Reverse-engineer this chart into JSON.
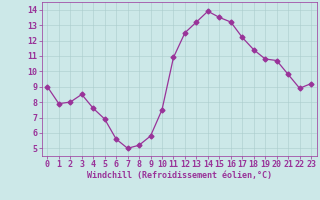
{
  "x": [
    0,
    1,
    2,
    3,
    4,
    5,
    6,
    7,
    8,
    9,
    10,
    11,
    12,
    13,
    14,
    15,
    16,
    17,
    18,
    19,
    20,
    21,
    22,
    23
  ],
  "y": [
    9.0,
    7.9,
    8.0,
    8.5,
    7.6,
    6.9,
    5.6,
    5.0,
    5.2,
    5.8,
    7.5,
    10.9,
    12.5,
    13.2,
    13.9,
    13.5,
    13.2,
    12.2,
    11.4,
    10.8,
    10.7,
    9.8,
    8.9,
    9.2
  ],
  "line_color": "#993399",
  "marker": "D",
  "markersize": 2.5,
  "linewidth": 0.9,
  "background_color": "#cce8e8",
  "grid_color": "#aacccc",
  "xlabel": "Windchill (Refroidissement éolien,°C)",
  "xlabel_fontsize": 6.0,
  "xlabel_color": "#993399",
  "tick_color": "#993399",
  "tick_fontsize": 6.0,
  "ylim": [
    4.5,
    14.5
  ],
  "xlim": [
    -0.5,
    23.5
  ],
  "yticks": [
    5,
    6,
    7,
    8,
    9,
    10,
    11,
    12,
    13,
    14
  ],
  "xticks": [
    0,
    1,
    2,
    3,
    4,
    5,
    6,
    7,
    8,
    9,
    10,
    11,
    12,
    13,
    14,
    15,
    16,
    17,
    18,
    19,
    20,
    21,
    22,
    23
  ]
}
